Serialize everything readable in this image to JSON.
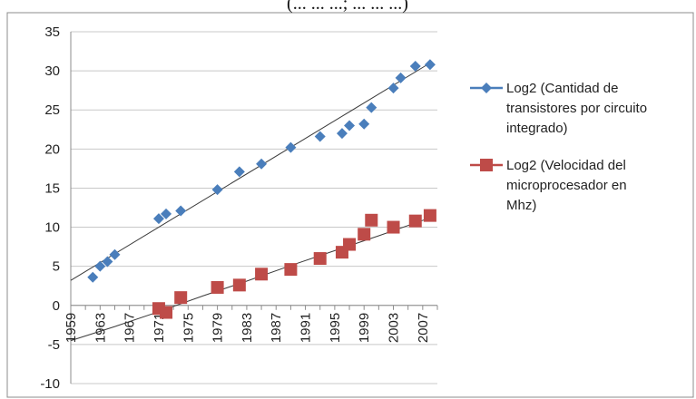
{
  "chart_data": {
    "type": "scatter",
    "title": "(... ... ...; ... ... ...)",
    "xlabel": "",
    "ylabel": "",
    "xlim": [
      1959,
      2009
    ],
    "ylim": [
      -10,
      35
    ],
    "y_ticks": [
      -10,
      -5,
      0,
      5,
      10,
      15,
      20,
      25,
      30,
      35
    ],
    "x_ticks": [
      "1959",
      "1963",
      "1967",
      "1971",
      "1975",
      "1979",
      "1983",
      "1987",
      "1991",
      "1995",
      "1999",
      "2003",
      "2007"
    ],
    "grid": "horizontal",
    "legend_position": "right",
    "series": [
      {
        "name": "Log2 (Cantidad de transistores por circuito integrado)",
        "legend_lines": [
          "Log2 (Cantidad de",
          "transistores por circuito",
          "integrado)"
        ],
        "color": "#4a7ebb",
        "marker": "diamond",
        "x": [
          1962,
          1963,
          1964,
          1965,
          1971,
          1972,
          1974,
          1979,
          1982,
          1985,
          1989,
          1993,
          1996,
          1997,
          1999,
          2000,
          2003,
          2004,
          2006,
          2008
        ],
        "y": [
          3.6,
          5.0,
          5.6,
          6.5,
          11.1,
          11.7,
          12.1,
          14.8,
          17.1,
          18.1,
          20.2,
          21.6,
          22.0,
          23.0,
          23.2,
          25.3,
          27.8,
          29.1,
          30.6,
          30.8
        ],
        "trend": [
          [
            1959,
            3.2
          ],
          [
            2008,
            31.0
          ]
        ]
      },
      {
        "name": "Log2 (Velocidad del microprocesador en Mhz)",
        "legend_lines": [
          "Log2 (Velocidad del",
          "microprocesador en",
          "Mhz)"
        ],
        "color": "#be4b48",
        "marker": "square",
        "x": [
          1971,
          1972,
          1974,
          1979,
          1982,
          1985,
          1989,
          1993,
          1996,
          1997,
          1999,
          2000,
          2003,
          2006,
          2008
        ],
        "y": [
          -0.4,
          -0.9,
          1.0,
          2.3,
          2.6,
          4.0,
          4.6,
          6.0,
          6.8,
          7.8,
          9.1,
          10.9,
          10.0,
          10.8,
          11.5
        ],
        "trend": [
          [
            1959,
            -4.5
          ],
          [
            1965,
            -2.7
          ],
          [
            1971,
            -0.8
          ],
          [
            1977,
            1.2
          ],
          [
            1983,
            3.1
          ],
          [
            1989,
            5.1
          ],
          [
            1995,
            7.0
          ],
          [
            2001,
            8.9
          ],
          [
            2008,
            11.2
          ]
        ]
      }
    ]
  }
}
